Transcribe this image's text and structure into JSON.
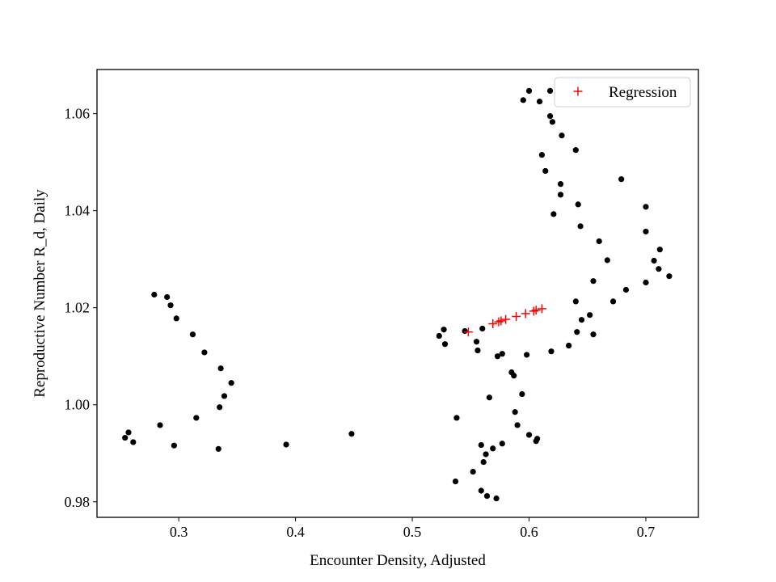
{
  "chart_data": {
    "type": "scatter",
    "title": "",
    "xlabel": "Encounter Density, Adjusted",
    "ylabel": "Reproductive Number R_d, Daily",
    "xlim": [
      0.23,
      0.745
    ],
    "ylim": [
      0.9768,
      1.0691
    ],
    "x_ticks": [
      0.3,
      0.4,
      0.5,
      0.6,
      0.7
    ],
    "x_tick_labels": [
      "0.3",
      "0.4",
      "0.5",
      "0.6",
      "0.7"
    ],
    "y_ticks": [
      0.98,
      1.0,
      1.02,
      1.04,
      1.06
    ],
    "y_tick_labels": [
      "0.98",
      "1.00",
      "1.02",
      "1.04",
      "1.06"
    ],
    "grid": false,
    "legend": {
      "placement": "top-right",
      "entries": [
        {
          "label": "Regression",
          "marker": "+",
          "color": "#ff0000"
        }
      ]
    },
    "series": [
      {
        "marker": "dot",
        "color": "#000000",
        "points": [
          [
            0.254,
            0.9932
          ],
          [
            0.257,
            0.9943
          ],
          [
            0.261,
            0.9923
          ],
          [
            0.279,
            1.0227
          ],
          [
            0.284,
            0.9958
          ],
          [
            0.29,
            1.0222
          ],
          [
            0.293,
            1.0205
          ],
          [
            0.296,
            0.9916
          ],
          [
            0.298,
            1.0178
          ],
          [
            0.312,
            1.0145
          ],
          [
            0.315,
            0.9973
          ],
          [
            0.322,
            1.0108
          ],
          [
            0.334,
            0.9909
          ],
          [
            0.335,
            0.9995
          ],
          [
            0.336,
            1.0075
          ],
          [
            0.339,
            1.0018
          ],
          [
            0.345,
            1.0045
          ],
          [
            0.392,
            0.9918
          ],
          [
            0.448,
            0.994
          ],
          [
            0.523,
            1.0142
          ],
          [
            0.527,
            1.0155
          ],
          [
            0.528,
            1.0125
          ],
          [
            0.537,
            0.9842
          ],
          [
            0.538,
            0.9973
          ],
          [
            0.545,
            1.0152
          ],
          [
            0.552,
            0.9862
          ],
          [
            0.555,
            1.013
          ],
          [
            0.556,
            1.0112
          ],
          [
            0.559,
            0.9917
          ],
          [
            0.559,
            0.9823
          ],
          [
            0.56,
            1.0157
          ],
          [
            0.561,
            0.9882
          ],
          [
            0.563,
            0.9898
          ],
          [
            0.564,
            0.9812
          ],
          [
            0.566,
            1.0015
          ],
          [
            0.569,
            0.991
          ],
          [
            0.572,
            0.9807
          ],
          [
            0.573,
            1.01
          ],
          [
            0.577,
            0.992
          ],
          [
            0.577,
            1.0105
          ],
          [
            0.585,
            1.0067
          ],
          [
            0.587,
            1.006
          ],
          [
            0.588,
            0.9985
          ],
          [
            0.59,
            0.9958
          ],
          [
            0.594,
            1.0022
          ],
          [
            0.598,
            1.0103
          ],
          [
            0.6,
            0.9938
          ],
          [
            0.595,
            1.0628
          ],
          [
            0.6,
            1.0647
          ],
          [
            0.606,
            0.9925
          ],
          [
            0.607,
            0.993
          ],
          [
            0.609,
            1.0625
          ],
          [
            0.611,
            1.0515
          ],
          [
            0.614,
            1.0482
          ],
          [
            0.618,
            1.0647
          ],
          [
            0.618,
            1.0595
          ],
          [
            0.619,
            1.011
          ],
          [
            0.62,
            1.0583
          ],
          [
            0.621,
            1.0393
          ],
          [
            0.627,
            1.0433
          ],
          [
            0.627,
            1.0455
          ],
          [
            0.628,
            1.0555
          ],
          [
            0.634,
            1.0122
          ],
          [
            0.64,
            1.0213
          ],
          [
            0.64,
            1.0525
          ],
          [
            0.641,
            1.015
          ],
          [
            0.642,
            1.0413
          ],
          [
            0.644,
            1.0368
          ],
          [
            0.645,
            1.0175
          ],
          [
            0.652,
            1.0185
          ],
          [
            0.655,
            1.0145
          ],
          [
            0.655,
            1.0255
          ],
          [
            0.66,
            1.0337
          ],
          [
            0.667,
            1.0298
          ],
          [
            0.672,
            1.0213
          ],
          [
            0.679,
            1.0465
          ],
          [
            0.683,
            1.0237
          ],
          [
            0.7,
            1.0408
          ],
          [
            0.7,
            1.0357
          ],
          [
            0.7,
            1.0252
          ],
          [
            0.707,
            1.0297
          ],
          [
            0.711,
            1.028
          ],
          [
            0.712,
            1.032
          ],
          [
            0.72,
            1.0265
          ]
        ]
      },
      {
        "name": "Regression",
        "marker": "plus",
        "color": "#ff0000",
        "points": [
          [
            0.548,
            1.015
          ],
          [
            0.569,
            1.0167
          ],
          [
            0.574,
            1.0171
          ],
          [
            0.576,
            1.0173
          ],
          [
            0.58,
            1.0176
          ],
          [
            0.589,
            1.0182
          ],
          [
            0.597,
            1.0188
          ],
          [
            0.604,
            1.0193
          ],
          [
            0.606,
            1.0195
          ],
          [
            0.611,
            1.0198
          ]
        ]
      }
    ]
  }
}
